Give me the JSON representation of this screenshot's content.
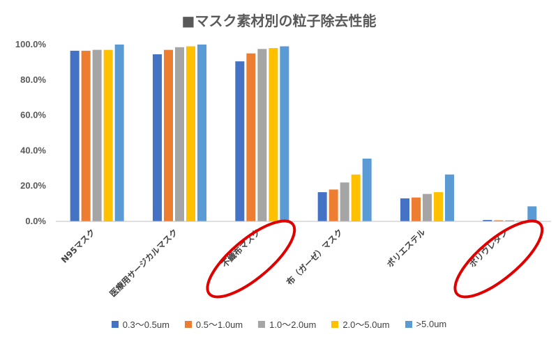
{
  "chart_data": {
    "type": "bar",
    "title": "■マスク素材別の粒子除去性能",
    "categories": [
      "N95マスク",
      "医療用サージカルマスク",
      "不織布マスク",
      "布（ガーゼ）マスク",
      "ポリエステル",
      "ポリウレタン"
    ],
    "ylim": [
      0,
      100
    ],
    "yticks": [
      "0.0%",
      "20.0%",
      "40.0%",
      "60.0%",
      "80.0%",
      "100.0%"
    ],
    "grid": false,
    "legend_position": "bottom",
    "series": [
      {
        "name": "0.3〜0.5um",
        "color": "#4472C4",
        "values": [
          96.5,
          94.5,
          90.5,
          16.5,
          13.0,
          0.8
        ]
      },
      {
        "name": "0.5〜1.0um",
        "color": "#ED7D31",
        "values": [
          96.5,
          97.0,
          95.0,
          18.0,
          13.5,
          0.6
        ]
      },
      {
        "name": "1.0〜2.0um",
        "color": "#A5A5A5",
        "values": [
          97.0,
          98.5,
          97.5,
          22.0,
          15.5,
          0.6
        ]
      },
      {
        "name": "2.0〜5.0um",
        "color": "#FFC000",
        "values": [
          97.0,
          99.0,
          98.0,
          26.5,
          16.5,
          0.4
        ]
      },
      {
        "name": ">5.0um",
        "color": "#5B9BD5",
        "values": [
          100.0,
          100.0,
          99.0,
          35.5,
          26.5,
          8.5
        ]
      }
    ],
    "highlighted_categories": [
      "不織布マスク",
      "ポリウレタン"
    ],
    "highlight_color": "#E00000"
  }
}
